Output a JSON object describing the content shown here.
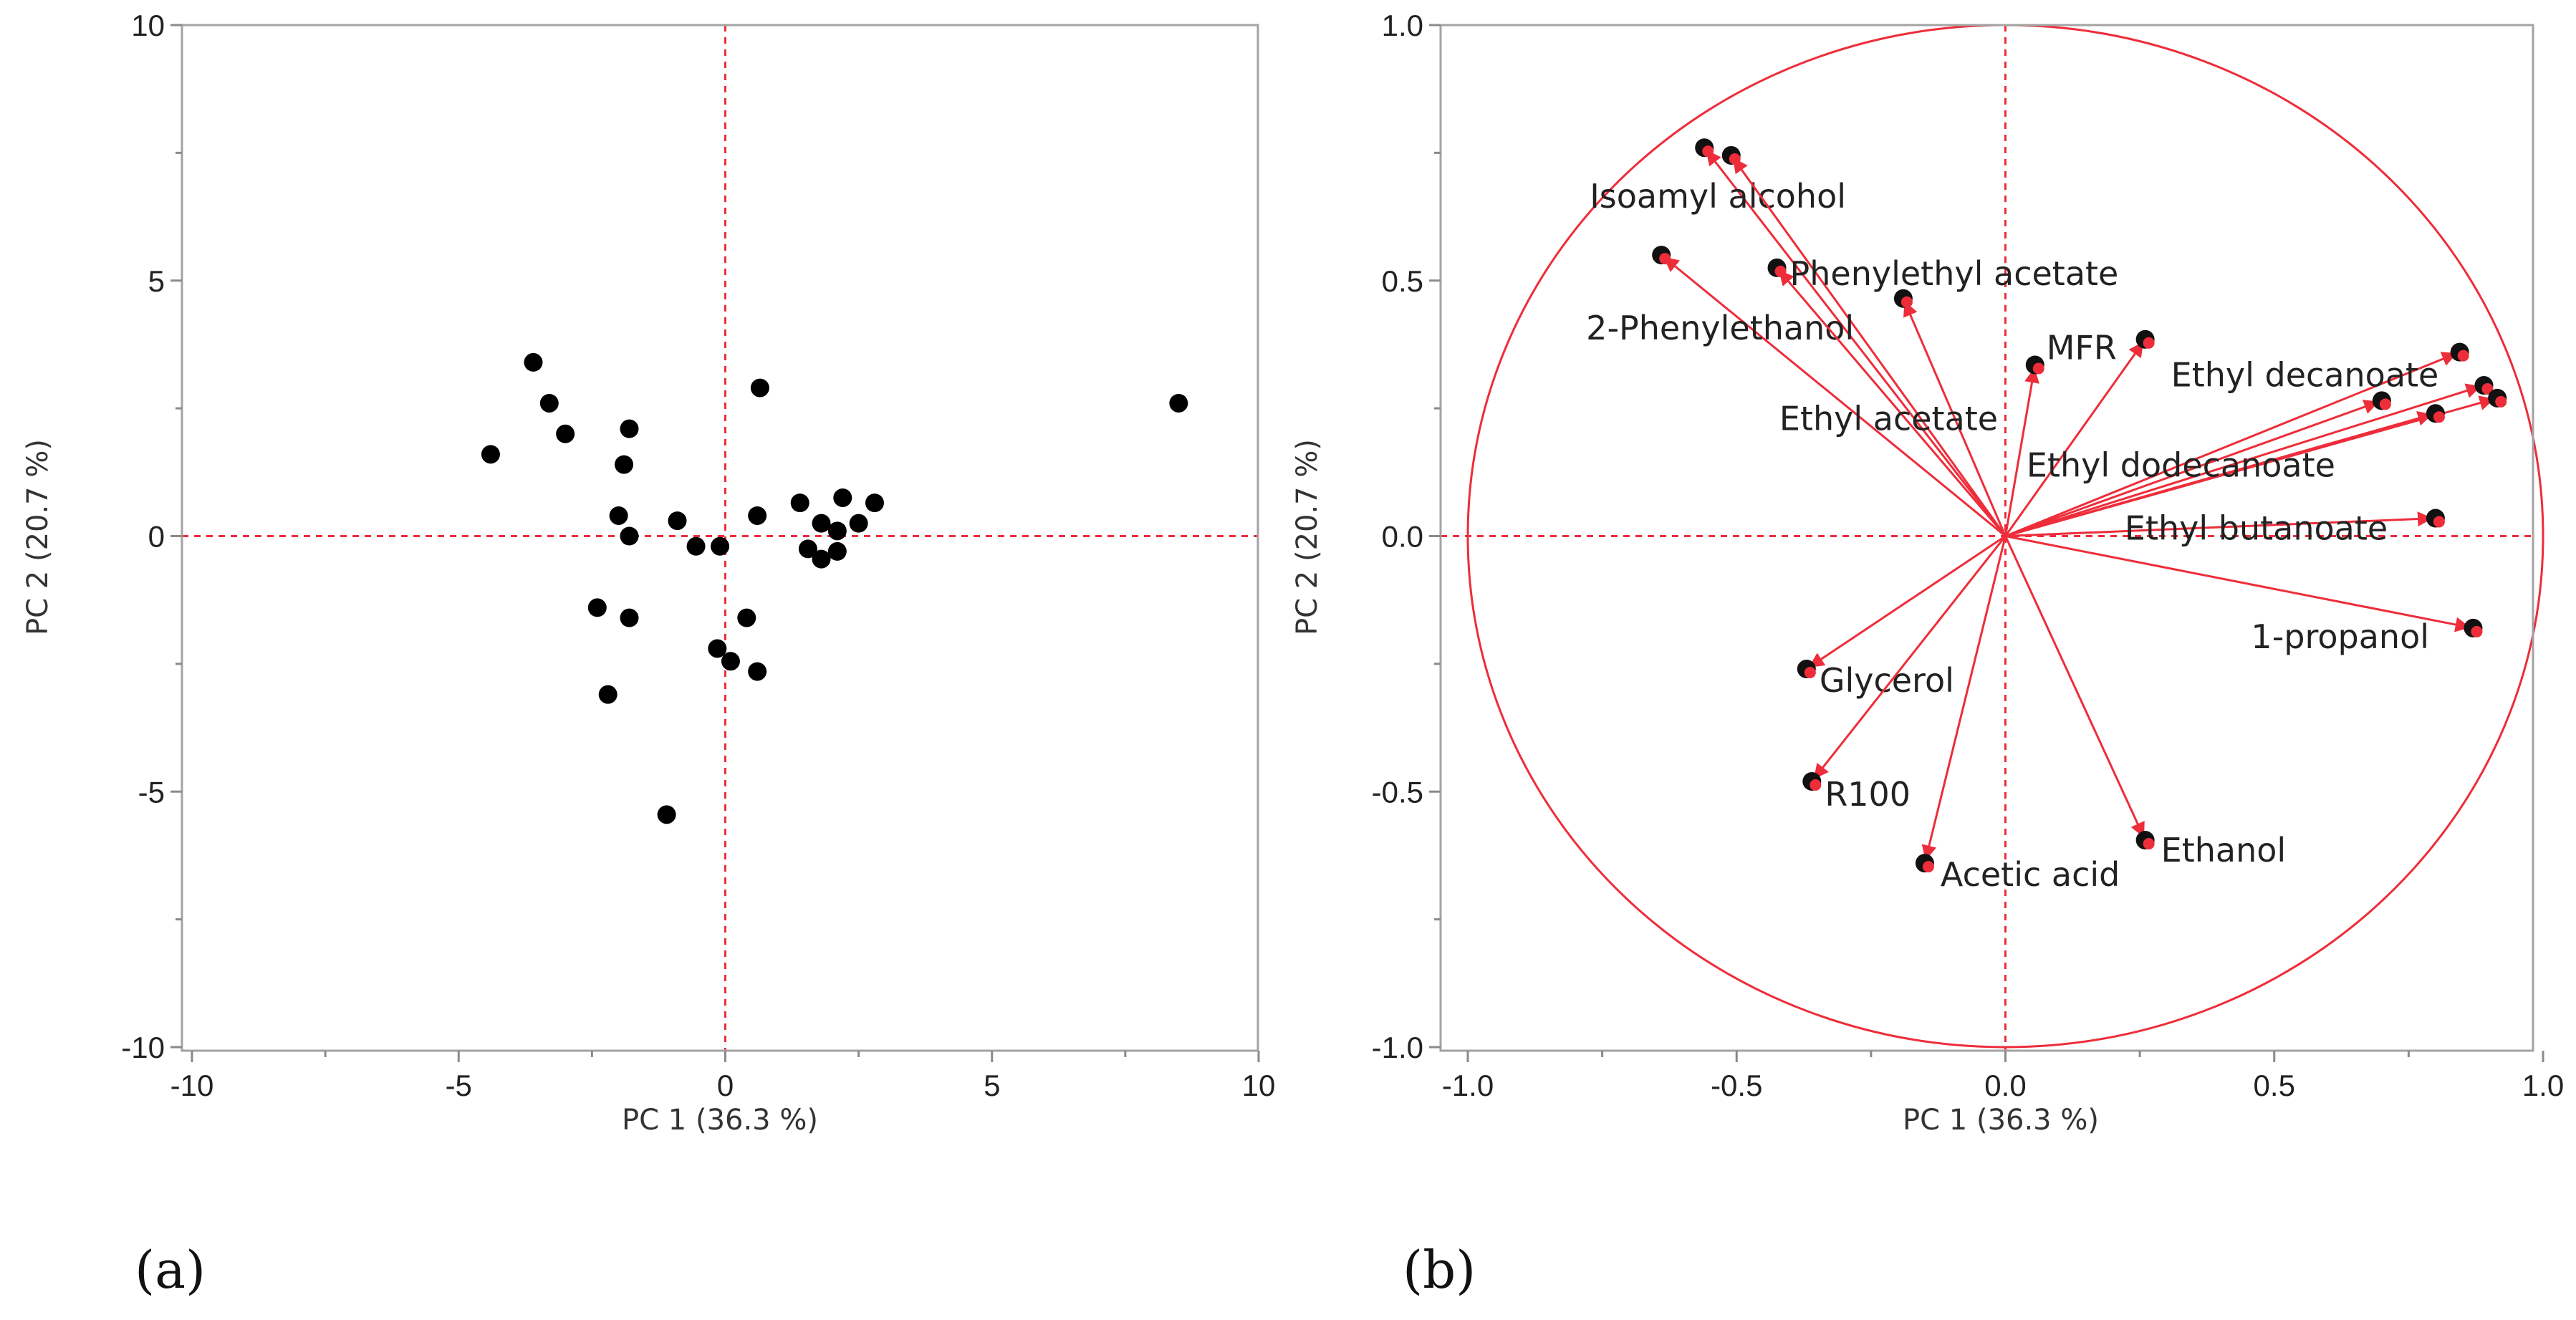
{
  "chart_data": [
    {
      "type": "scatter",
      "panel_label": "(a)",
      "xlabel": "PC 1  (36.3 %)",
      "ylabel": "PC 2  (20.7 %)",
      "xlim": [
        -10,
        10
      ],
      "ylim": [
        -10,
        10
      ],
      "xticks": [
        -10,
        -5,
        0,
        5,
        10
      ],
      "yticks": [
        -10,
        -5,
        0,
        5,
        10
      ],
      "xtick_labels": [
        "-10",
        "-5",
        "0",
        "5",
        "10"
      ],
      "ytick_labels": [
        "-10",
        "-5",
        "0",
        "5",
        "10"
      ],
      "reference_lines": {
        "x": 0,
        "y": 0
      },
      "points": [
        {
          "x": -4.4,
          "y": 1.6
        },
        {
          "x": -3.6,
          "y": 3.4
        },
        {
          "x": -3.3,
          "y": 2.6
        },
        {
          "x": -3.0,
          "y": 2.0
        },
        {
          "x": -1.8,
          "y": 2.1
        },
        {
          "x": -1.9,
          "y": 1.4
        },
        {
          "x": -2.0,
          "y": 0.4
        },
        {
          "x": -1.8,
          "y": 0.0
        },
        {
          "x": -0.9,
          "y": 0.3
        },
        {
          "x": -0.55,
          "y": -0.2
        },
        {
          "x": -0.1,
          "y": -0.2
        },
        {
          "x": 0.65,
          "y": 2.9
        },
        {
          "x": 0.6,
          "y": 0.4
        },
        {
          "x": 1.4,
          "y": 0.65
        },
        {
          "x": 1.55,
          "y": -0.25
        },
        {
          "x": 1.8,
          "y": 0.25
        },
        {
          "x": 1.8,
          "y": -0.45
        },
        {
          "x": 2.1,
          "y": -0.3
        },
        {
          "x": 2.1,
          "y": 0.1
        },
        {
          "x": 2.2,
          "y": 0.75
        },
        {
          "x": 2.5,
          "y": 0.25
        },
        {
          "x": 2.8,
          "y": 0.65
        },
        {
          "x": -2.4,
          "y": -1.4
        },
        {
          "x": -1.8,
          "y": -1.6
        },
        {
          "x": 0.4,
          "y": -1.6
        },
        {
          "x": -0.15,
          "y": -2.2
        },
        {
          "x": 0.1,
          "y": -2.45
        },
        {
          "x": 0.6,
          "y": -2.65
        },
        {
          "x": -2.2,
          "y": -3.1
        },
        {
          "x": -1.1,
          "y": -5.45
        },
        {
          "x": 8.5,
          "y": 2.6
        }
      ]
    },
    {
      "type": "scatter",
      "subtype": "loading-plot",
      "panel_label": "(b)",
      "xlabel": "PC 1  (36.3 %)",
      "ylabel": "PC 2  (20.7 %)",
      "xlim": [
        -1,
        1
      ],
      "ylim": [
        -1,
        1
      ],
      "xticks": [
        -1.0,
        -0.5,
        0.0,
        0.5,
        1.0
      ],
      "yticks": [
        -1.0,
        -0.5,
        0.0,
        0.5,
        1.0
      ],
      "xtick_labels": [
        "-1.0",
        "-0.5",
        "0.0",
        "0.5",
        "1.0"
      ],
      "ytick_labels": [
        "-1.0",
        "-0.5",
        "0.0",
        "0.5",
        "1.0"
      ],
      "reference_lines": {
        "x": 0,
        "y": 0
      },
      "unit_circle": true,
      "loadings": [
        {
          "label": "Isoamyl alcohol",
          "x": -0.56,
          "y": 0.76
        },
        {
          "label": "",
          "x": -0.51,
          "y": 0.745
        },
        {
          "label": "2-Phenylethanol",
          "x": -0.64,
          "y": 0.55
        },
        {
          "label": "Phenylethyl acetate",
          "x": -0.425,
          "y": 0.525
        },
        {
          "label": "Ethyl acetate",
          "x": -0.19,
          "y": 0.465
        },
        {
          "label": "MFR",
          "x": 0.055,
          "y": 0.335
        },
        {
          "label": "",
          "x": 0.26,
          "y": 0.385
        },
        {
          "label": "Ethyl decanoate",
          "x": 0.845,
          "y": 0.36
        },
        {
          "label": "",
          "x": 0.89,
          "y": 0.295
        },
        {
          "label": "",
          "x": 0.915,
          "y": 0.27
        },
        {
          "label": "",
          "x": 0.7,
          "y": 0.265
        },
        {
          "label": "Ethyl dodecanoate",
          "x": 0.8,
          "y": 0.24
        },
        {
          "label": "Ethyl butanoate",
          "x": 0.8,
          "y": 0.035
        },
        {
          "label": "1-propanol",
          "x": 0.87,
          "y": -0.18
        },
        {
          "label": "Glycerol",
          "x": -0.37,
          "y": -0.26
        },
        {
          "label": "R100",
          "x": -0.36,
          "y": -0.48
        },
        {
          "label": "Acetic acid",
          "x": -0.15,
          "y": -0.64
        },
        {
          "label": "Ethanol",
          "x": 0.26,
          "y": -0.595
        }
      ]
    }
  ]
}
